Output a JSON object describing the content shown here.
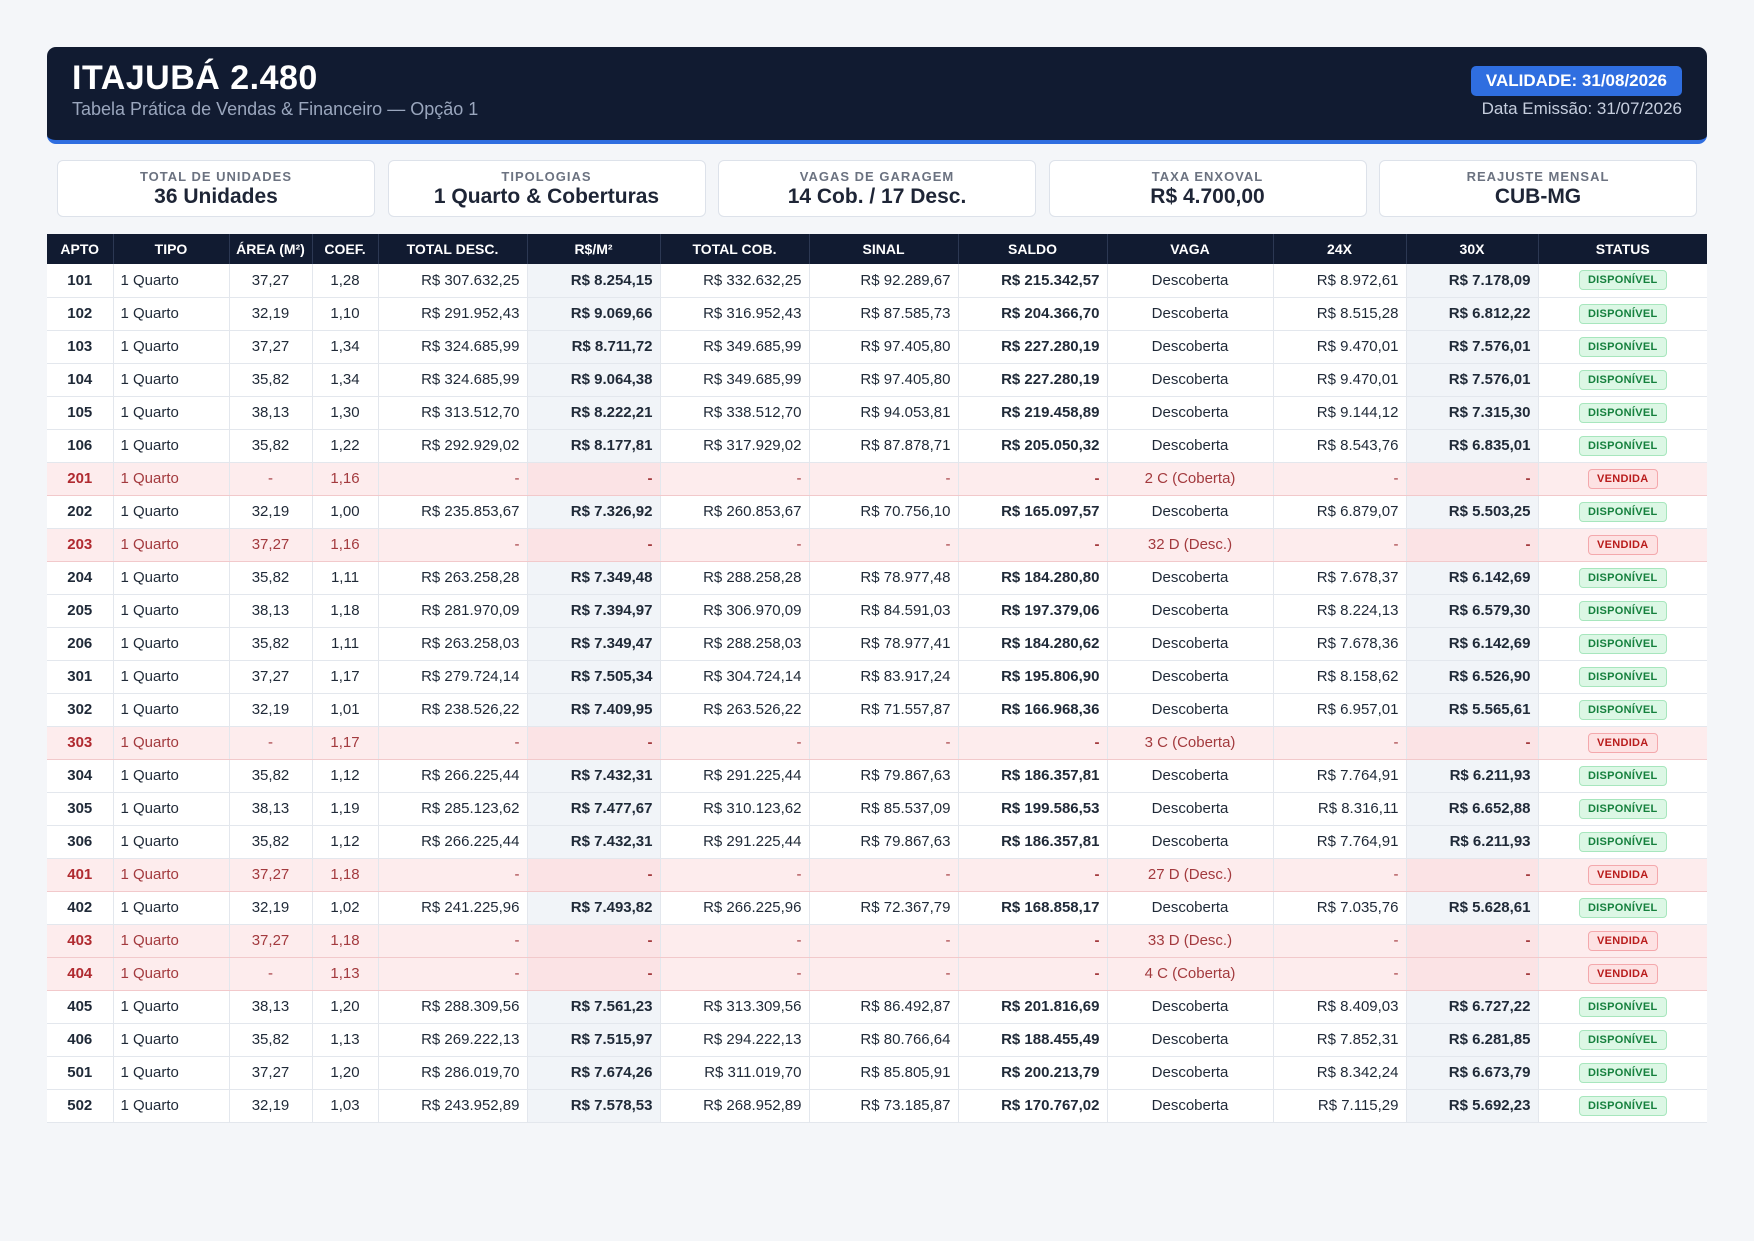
{
  "header": {
    "title": "ITAJUBÁ 2.480",
    "subtitle": "Tabela Prática de Vendas & Financeiro — Opção 1",
    "validity": "VALIDADE: 31/08/2026",
    "emission": "Data Emissão: 31/07/2026"
  },
  "kpis": [
    {
      "label": "TOTAL DE UNIDADES",
      "value": "36 Unidades"
    },
    {
      "label": "TIPOLOGIAS",
      "value": "1 Quarto & Coberturas"
    },
    {
      "label": "VAGAS DE GARAGEM",
      "value": "14 Cob. / 17 Desc."
    },
    {
      "label": "TAXA ENXOVAL",
      "value": "R$ 4.700,00"
    },
    {
      "label": "REAJUSTE MENSAL",
      "value": "CUB-MG"
    }
  ],
  "table": {
    "columns": [
      "APTO",
      "TIPO",
      "ÁREA (M²)",
      "COEF.",
      "TOTAL DESC.",
      "R$/M²",
      "TOTAL COB.",
      "SINAL",
      "SALDO",
      "VAGA",
      "24X",
      "30X",
      "STATUS"
    ],
    "rows": [
      [
        "101",
        "1 Quarto",
        "37,27",
        "1,28",
        "R$ 307.632,25",
        "R$ 8.254,15",
        "R$ 332.632,25",
        "R$ 92.289,67",
        "R$ 215.342,57",
        "Descoberta",
        "R$ 8.972,61",
        "R$ 7.178,09",
        "DISPONÍVEL"
      ],
      [
        "102",
        "1 Quarto",
        "32,19",
        "1,10",
        "R$ 291.952,43",
        "R$ 9.069,66",
        "R$ 316.952,43",
        "R$ 87.585,73",
        "R$ 204.366,70",
        "Descoberta",
        "R$ 8.515,28",
        "R$ 6.812,22",
        "DISPONÍVEL"
      ],
      [
        "103",
        "1 Quarto",
        "37,27",
        "1,34",
        "R$ 324.685,99",
        "R$ 8.711,72",
        "R$ 349.685,99",
        "R$ 97.405,80",
        "R$ 227.280,19",
        "Descoberta",
        "R$ 9.470,01",
        "R$ 7.576,01",
        "DISPONÍVEL"
      ],
      [
        "104",
        "1 Quarto",
        "35,82",
        "1,34",
        "R$ 324.685,99",
        "R$ 9.064,38",
        "R$ 349.685,99",
        "R$ 97.405,80",
        "R$ 227.280,19",
        "Descoberta",
        "R$ 9.470,01",
        "R$ 7.576,01",
        "DISPONÍVEL"
      ],
      [
        "105",
        "1 Quarto",
        "38,13",
        "1,30",
        "R$ 313.512,70",
        "R$ 8.222,21",
        "R$ 338.512,70",
        "R$ 94.053,81",
        "R$ 219.458,89",
        "Descoberta",
        "R$ 9.144,12",
        "R$ 7.315,30",
        "DISPONÍVEL"
      ],
      [
        "106",
        "1 Quarto",
        "35,82",
        "1,22",
        "R$ 292.929,02",
        "R$ 8.177,81",
        "R$ 317.929,02",
        "R$ 87.878,71",
        "R$ 205.050,32",
        "Descoberta",
        "R$ 8.543,76",
        "R$ 6.835,01",
        "DISPONÍVEL"
      ],
      [
        "201",
        "1 Quarto",
        "-",
        "1,16",
        "-",
        "-",
        "-",
        "-",
        "-",
        "2 C (Coberta)",
        "-",
        "-",
        "VENDIDA"
      ],
      [
        "202",
        "1 Quarto",
        "32,19",
        "1,00",
        "R$ 235.853,67",
        "R$ 7.326,92",
        "R$ 260.853,67",
        "R$ 70.756,10",
        "R$ 165.097,57",
        "Descoberta",
        "R$ 6.879,07",
        "R$ 5.503,25",
        "DISPONÍVEL"
      ],
      [
        "203",
        "1 Quarto",
        "37,27",
        "1,16",
        "-",
        "-",
        "-",
        "-",
        "-",
        "32 D (Desc.)",
        "-",
        "-",
        "VENDIDA"
      ],
      [
        "204",
        "1 Quarto",
        "35,82",
        "1,11",
        "R$ 263.258,28",
        "R$ 7.349,48",
        "R$ 288.258,28",
        "R$ 78.977,48",
        "R$ 184.280,80",
        "Descoberta",
        "R$ 7.678,37",
        "R$ 6.142,69",
        "DISPONÍVEL"
      ],
      [
        "205",
        "1 Quarto",
        "38,13",
        "1,18",
        "R$ 281.970,09",
        "R$ 7.394,97",
        "R$ 306.970,09",
        "R$ 84.591,03",
        "R$ 197.379,06",
        "Descoberta",
        "R$ 8.224,13",
        "R$ 6.579,30",
        "DISPONÍVEL"
      ],
      [
        "206",
        "1 Quarto",
        "35,82",
        "1,11",
        "R$ 263.258,03",
        "R$ 7.349,47",
        "R$ 288.258,03",
        "R$ 78.977,41",
        "R$ 184.280,62",
        "Descoberta",
        "R$ 7.678,36",
        "R$ 6.142,69",
        "DISPONÍVEL"
      ],
      [
        "301",
        "1 Quarto",
        "37,27",
        "1,17",
        "R$ 279.724,14",
        "R$ 7.505,34",
        "R$ 304.724,14",
        "R$ 83.917,24",
        "R$ 195.806,90",
        "Descoberta",
        "R$ 8.158,62",
        "R$ 6.526,90",
        "DISPONÍVEL"
      ],
      [
        "302",
        "1 Quarto",
        "32,19",
        "1,01",
        "R$ 238.526,22",
        "R$ 7.409,95",
        "R$ 263.526,22",
        "R$ 71.557,87",
        "R$ 166.968,36",
        "Descoberta",
        "R$ 6.957,01",
        "R$ 5.565,61",
        "DISPONÍVEL"
      ],
      [
        "303",
        "1 Quarto",
        "-",
        "1,17",
        "-",
        "-",
        "-",
        "-",
        "-",
        "3 C (Coberta)",
        "-",
        "-",
        "VENDIDA"
      ],
      [
        "304",
        "1 Quarto",
        "35,82",
        "1,12",
        "R$ 266.225,44",
        "R$ 7.432,31",
        "R$ 291.225,44",
        "R$ 79.867,63",
        "R$ 186.357,81",
        "Descoberta",
        "R$ 7.764,91",
        "R$ 6.211,93",
        "DISPONÍVEL"
      ],
      [
        "305",
        "1 Quarto",
        "38,13",
        "1,19",
        "R$ 285.123,62",
        "R$ 7.477,67",
        "R$ 310.123,62",
        "R$ 85.537,09",
        "R$ 199.586,53",
        "Descoberta",
        "R$ 8.316,11",
        "R$ 6.652,88",
        "DISPONÍVEL"
      ],
      [
        "306",
        "1 Quarto",
        "35,82",
        "1,12",
        "R$ 266.225,44",
        "R$ 7.432,31",
        "R$ 291.225,44",
        "R$ 79.867,63",
        "R$ 186.357,81",
        "Descoberta",
        "R$ 7.764,91",
        "R$ 6.211,93",
        "DISPONÍVEL"
      ],
      [
        "401",
        "1 Quarto",
        "37,27",
        "1,18",
        "-",
        "-",
        "-",
        "-",
        "-",
        "27 D (Desc.)",
        "-",
        "-",
        "VENDIDA"
      ],
      [
        "402",
        "1 Quarto",
        "32,19",
        "1,02",
        "R$ 241.225,96",
        "R$ 7.493,82",
        "R$ 266.225,96",
        "R$ 72.367,79",
        "R$ 168.858,17",
        "Descoberta",
        "R$ 7.035,76",
        "R$ 5.628,61",
        "DISPONÍVEL"
      ],
      [
        "403",
        "1 Quarto",
        "37,27",
        "1,18",
        "-",
        "-",
        "-",
        "-",
        "-",
        "33 D (Desc.)",
        "-",
        "-",
        "VENDIDA"
      ],
      [
        "404",
        "1 Quarto",
        "-",
        "1,13",
        "-",
        "-",
        "-",
        "-",
        "-",
        "4 C (Coberta)",
        "-",
        "-",
        "VENDIDA"
      ],
      [
        "405",
        "1 Quarto",
        "38,13",
        "1,20",
        "R$ 288.309,56",
        "R$ 7.561,23",
        "R$ 313.309,56",
        "R$ 86.492,87",
        "R$ 201.816,69",
        "Descoberta",
        "R$ 8.409,03",
        "R$ 6.727,22",
        "DISPONÍVEL"
      ],
      [
        "406",
        "1 Quarto",
        "35,82",
        "1,13",
        "R$ 269.222,13",
        "R$ 7.515,97",
        "R$ 294.222,13",
        "R$ 80.766,64",
        "R$ 188.455,49",
        "Descoberta",
        "R$ 7.852,31",
        "R$ 6.281,85",
        "DISPONÍVEL"
      ],
      [
        "501",
        "1 Quarto",
        "37,27",
        "1,20",
        "R$ 286.019,70",
        "R$ 7.674,26",
        "R$ 311.019,70",
        "R$ 85.805,91",
        "R$ 200.213,79",
        "Descoberta",
        "R$ 8.342,24",
        "R$ 6.673,79",
        "DISPONÍVEL"
      ],
      [
        "502",
        "1 Quarto",
        "32,19",
        "1,03",
        "R$ 243.952,89",
        "R$ 7.578,53",
        "R$ 268.952,89",
        "R$ 73.185,87",
        "R$ 170.767,02",
        "Descoberta",
        "R$ 7.115,29",
        "R$ 5.692,23",
        "DISPONÍVEL"
      ]
    ]
  },
  "colors": {
    "header_bg": "#111b31",
    "accent": "#2f6ee0",
    "available_green": "#15803d",
    "sold_red": "#b91c1c",
    "sold_row_bg": "#fdeced"
  }
}
